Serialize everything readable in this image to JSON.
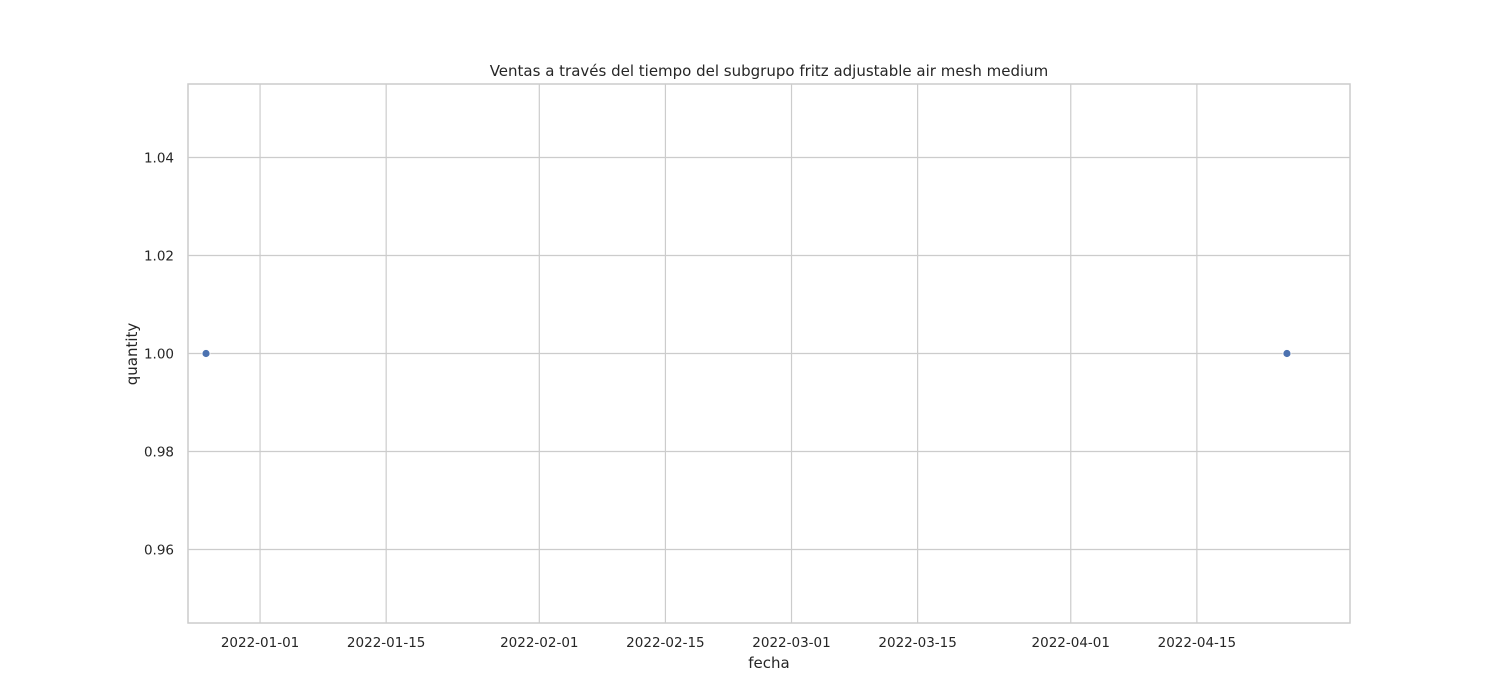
{
  "chart_data": {
    "type": "scatter",
    "title": "Ventas a través del tiempo del subgrupo fritz adjustable air mesh medium",
    "xlabel": "fecha",
    "ylabel": "quantity",
    "x_type": "date",
    "xlim": [
      "2021-12-24",
      "2022-05-02"
    ],
    "ylim": [
      0.945,
      1.055
    ],
    "x_ticks": [
      {
        "value": "2022-01-01",
        "label": "2022-01-01"
      },
      {
        "value": "2022-01-15",
        "label": "2022-01-15"
      },
      {
        "value": "2022-02-01",
        "label": "2022-02-01"
      },
      {
        "value": "2022-02-15",
        "label": "2022-02-15"
      },
      {
        "value": "2022-03-01",
        "label": "2022-03-01"
      },
      {
        "value": "2022-03-15",
        "label": "2022-03-15"
      },
      {
        "value": "2022-04-01",
        "label": "2022-04-01"
      },
      {
        "value": "2022-04-15",
        "label": "2022-04-15"
      }
    ],
    "y_ticks": [
      {
        "value": 0.96,
        "label": "0.96"
      },
      {
        "value": 0.98,
        "label": "0.98"
      },
      {
        "value": 1.0,
        "label": "1.00"
      },
      {
        "value": 1.02,
        "label": "1.02"
      },
      {
        "value": 1.04,
        "label": "1.04"
      }
    ],
    "grid": true,
    "series": [
      {
        "name": "quantity",
        "color": "#4c72b0",
        "points": [
          {
            "x": "2021-12-26",
            "y": 1
          },
          {
            "x": "2022-04-25",
            "y": 1
          }
        ]
      }
    ]
  }
}
